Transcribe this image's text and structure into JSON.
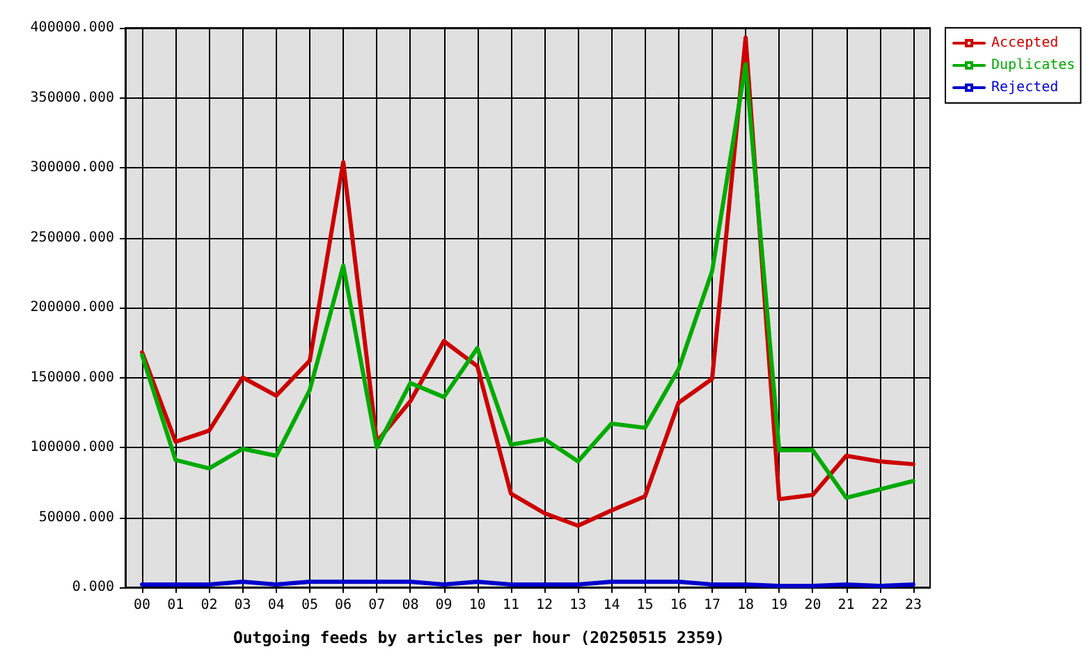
{
  "chart_data": {
    "type": "line",
    "xlabel": "Outgoing feeds by articles per hour (20250515 2359)",
    "categories": [
      "00",
      "01",
      "02",
      "03",
      "04",
      "05",
      "06",
      "07",
      "08",
      "09",
      "10",
      "11",
      "12",
      "13",
      "14",
      "15",
      "16",
      "17",
      "18",
      "19",
      "20",
      "21",
      "22",
      "23"
    ],
    "series": [
      {
        "name": "Accepted",
        "color": "#cc0000",
        "values": [
          168000,
          104000,
          112000,
          150000,
          137000,
          162000,
          304000,
          104000,
          133000,
          176000,
          158000,
          67000,
          53000,
          44000,
          55000,
          65000,
          132000,
          149000,
          393000,
          63000,
          66000,
          94000,
          90000,
          88000
        ]
      },
      {
        "name": "Duplicates",
        "color": "#00aa00",
        "values": [
          166000,
          91000,
          85000,
          99000,
          94000,
          141000,
          230000,
          100000,
          146000,
          136000,
          171000,
          102000,
          106000,
          90000,
          117000,
          114000,
          156000,
          226000,
          374000,
          98000,
          98000,
          64000,
          70000,
          76000
        ]
      },
      {
        "name": "Rejected",
        "color": "#0000cc",
        "values": [
          2000,
          2000,
          2000,
          4000,
          2000,
          4000,
          4000,
          4000,
          4000,
          2000,
          4000,
          2000,
          2000,
          2000,
          4000,
          4000,
          4000,
          2000,
          2000,
          1000,
          1000,
          2000,
          1000,
          2000
        ]
      }
    ],
    "ylim": [
      0,
      400000
    ],
    "yticks": [
      {
        "value": 0,
        "label": "0.000"
      },
      {
        "value": 50000,
        "label": "50000.000"
      },
      {
        "value": 100000,
        "label": "100000.000"
      },
      {
        "value": 150000,
        "label": "150000.000"
      },
      {
        "value": 200000,
        "label": "200000.000"
      },
      {
        "value": 250000,
        "label": "250000.000"
      },
      {
        "value": 300000,
        "label": "300000.000"
      },
      {
        "value": 350000,
        "label": "350000.000"
      },
      {
        "value": 400000,
        "label": "400000.000"
      }
    ],
    "grid": true,
    "legend": "top right",
    "marker": "none",
    "line_style": "solid"
  }
}
